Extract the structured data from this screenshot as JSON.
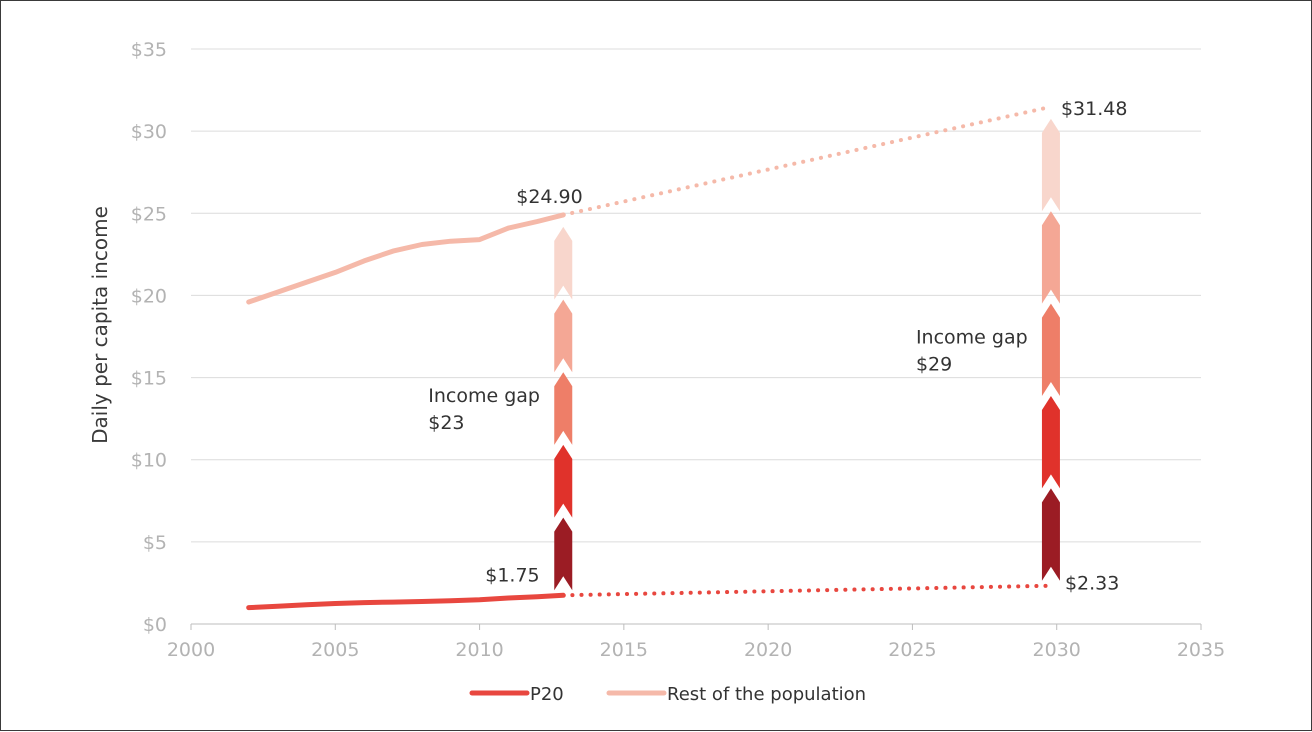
{
  "chart_data": {
    "type": "line",
    "title": "",
    "xlabel": "",
    "ylabel": "Daily per capita income",
    "xlim": [
      2000,
      2035
    ],
    "ylim": [
      0,
      35
    ],
    "x_ticks": [
      2000,
      2005,
      2010,
      2015,
      2020,
      2025,
      2030,
      2035
    ],
    "x_tick_labels": [
      "2000",
      "2005",
      "2010",
      "2015",
      "2020",
      "2025",
      "2030",
      "2035"
    ],
    "y_ticks": [
      0,
      5,
      10,
      15,
      20,
      25,
      30,
      35
    ],
    "y_tick_labels": [
      "$0",
      "$5",
      "$10",
      "$15",
      "$20",
      "$25",
      "$30",
      "$35"
    ],
    "grid": "horizontal",
    "legend_position": "bottom",
    "series": [
      {
        "name": "P20",
        "color": "#e8473f",
        "x": [
          2002,
          2003,
          2004,
          2005,
          2006,
          2007,
          2008,
          2009,
          2010,
          2011,
          2012,
          2012.9
        ],
        "values": [
          1.0,
          1.08,
          1.17,
          1.25,
          1.3,
          1.33,
          1.37,
          1.42,
          1.48,
          1.58,
          1.66,
          1.75
        ],
        "projection": {
          "x": [
            2012.9,
            2029.8
          ],
          "values": [
            1.75,
            2.33
          ]
        }
      },
      {
        "name": "Rest of the population",
        "color": "#f5b9a9",
        "x": [
          2002,
          2003,
          2004,
          2005,
          2006,
          2007,
          2008,
          2009,
          2010,
          2011,
          2012,
          2012.9
        ],
        "values": [
          19.6,
          20.2,
          20.8,
          21.4,
          22.1,
          22.7,
          23.1,
          23.3,
          23.4,
          24.1,
          24.5,
          24.9
        ],
        "projection": {
          "x": [
            2012.9,
            2029.8
          ],
          "values": [
            24.9,
            31.48
          ]
        }
      }
    ],
    "annotations": [
      {
        "text": "$24.90",
        "x": 2012.9,
        "y": 24.9
      },
      {
        "text": "$31.48",
        "x": 2029.8,
        "y": 31.48
      },
      {
        "text": "$1.75",
        "x": 2012.9,
        "y": 1.75
      },
      {
        "text": "$2.33",
        "x": 2029.8,
        "y": 2.33
      }
    ],
    "gaps": [
      {
        "x": 2012.9,
        "from": 1.75,
        "to": 24.9,
        "label_line1": "Income gap",
        "label_line2": "$23"
      },
      {
        "x": 2029.8,
        "from": 2.33,
        "to": 31.48,
        "label_line1": "Income gap",
        "label_line2": "$29"
      }
    ],
    "gap_colors": [
      "#9b1c24",
      "#e0322b",
      "#ee7e68",
      "#f4a795",
      "#f8d6cc"
    ]
  }
}
